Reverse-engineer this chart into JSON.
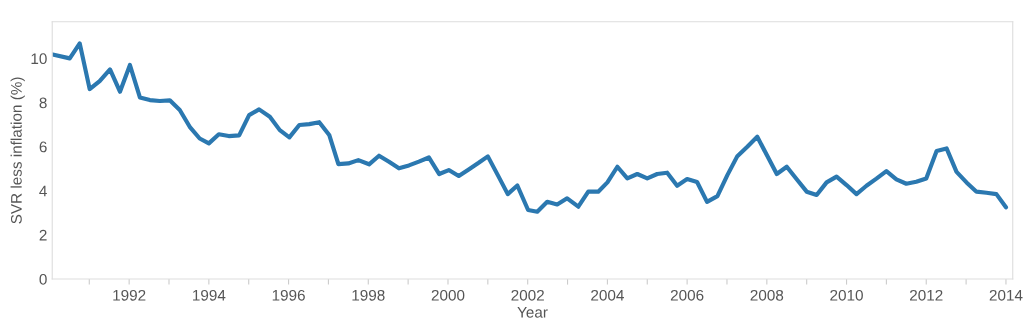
{
  "chart_data": {
    "type": "line",
    "xlabel": "Year",
    "ylabel": "SVR less inflation (%)",
    "xlim": [
      1990.07,
      2014.17
    ],
    "ylim": [
      0,
      11.66
    ],
    "xticks": [
      {
        "value": 1991,
        "label": null
      },
      1992,
      {
        "value": 1993,
        "label": null
      },
      1994,
      {
        "value": 1995,
        "label": null
      },
      1996,
      {
        "value": 1997,
        "label": null
      },
      1998,
      {
        "value": 1999,
        "label": null
      },
      2000,
      {
        "value": 2001,
        "label": null
      },
      2002,
      {
        "value": 2003,
        "label": null
      },
      2004,
      {
        "value": 2005,
        "label": null
      },
      2006,
      {
        "value": 2007,
        "label": null
      },
      2008,
      {
        "value": 2009,
        "label": null
      },
      2010,
      {
        "value": 2011,
        "label": null
      },
      2012,
      {
        "value": 2013,
        "label": null
      },
      2014
    ],
    "yticks": [
      0,
      2,
      4,
      6,
      8,
      10
    ],
    "grid": false,
    "marker": "none",
    "line_style": "solid",
    "series": [
      {
        "color": "#2b78b0",
        "x": [
          1990.08,
          1990.51,
          1990.76,
          1991.01,
          1991.26,
          1991.52,
          1991.77,
          1992.02,
          1992.27,
          1992.52,
          1992.77,
          1993.02,
          1993.27,
          1993.52,
          1993.77,
          1994.0,
          1994.25,
          1994.5,
          1994.76,
          1995.01,
          1995.26,
          1995.53,
          1995.78,
          1996.02,
          1996.27,
          1996.52,
          1996.77,
          1997.02,
          1997.25,
          1997.5,
          1997.75,
          1998.02,
          1998.27,
          1998.52,
          1998.77,
          1999.02,
          1999.27,
          1999.52,
          1999.78,
          2000.02,
          2000.27,
          2000.52,
          2000.77,
          2001.0,
          2001.25,
          2001.5,
          2001.74,
          2002.01,
          2002.24,
          2002.49,
          2002.74,
          2002.99,
          2003.27,
          2003.52,
          2003.77,
          2004.0,
          2004.25,
          2004.5,
          2004.75,
          2005.0,
          2005.25,
          2005.5,
          2005.75,
          2006.0,
          2006.25,
          2006.5,
          2006.76,
          2007.01,
          2007.26,
          2007.51,
          2007.76,
          2008.0,
          2008.25,
          2008.5,
          2008.75,
          2009.0,
          2009.25,
          2009.5,
          2009.75,
          2010.0,
          2010.25,
          2010.5,
          2010.75,
          2011.0,
          2011.25,
          2011.5,
          2011.75,
          2012.0,
          2012.26,
          2012.51,
          2012.76,
          2013.01,
          2013.26,
          2013.51,
          2013.76,
          2014.0
        ],
        "values": [
          10.18,
          10.0,
          10.68,
          8.61,
          8.97,
          9.5,
          8.49,
          9.7,
          8.23,
          8.11,
          8.07,
          8.1,
          7.66,
          6.9,
          6.37,
          6.15,
          6.56,
          6.48,
          6.51,
          7.43,
          7.69,
          7.36,
          6.75,
          6.42,
          6.98,
          7.02,
          7.11,
          6.53,
          5.21,
          5.24,
          5.39,
          5.2,
          5.59,
          5.32,
          5.02,
          5.15,
          5.32,
          5.51,
          4.76,
          4.94,
          4.67,
          4.97,
          5.27,
          5.56,
          4.71,
          3.85,
          4.24,
          3.13,
          3.05,
          3.5,
          3.38,
          3.66,
          3.28,
          3.96,
          3.96,
          4.38,
          5.09,
          4.56,
          4.76,
          4.56,
          4.76,
          4.82,
          4.23,
          4.53,
          4.4,
          3.5,
          3.76,
          4.71,
          5.57,
          6.0,
          6.45,
          5.62,
          4.76,
          5.09,
          4.52,
          3.96,
          3.81,
          4.38,
          4.64,
          4.26,
          3.85,
          4.23,
          4.55,
          4.89,
          4.52,
          4.32,
          4.41,
          4.56,
          5.8,
          5.92,
          4.86,
          4.38,
          3.96,
          3.91,
          3.85,
          3.25
        ]
      }
    ]
  }
}
